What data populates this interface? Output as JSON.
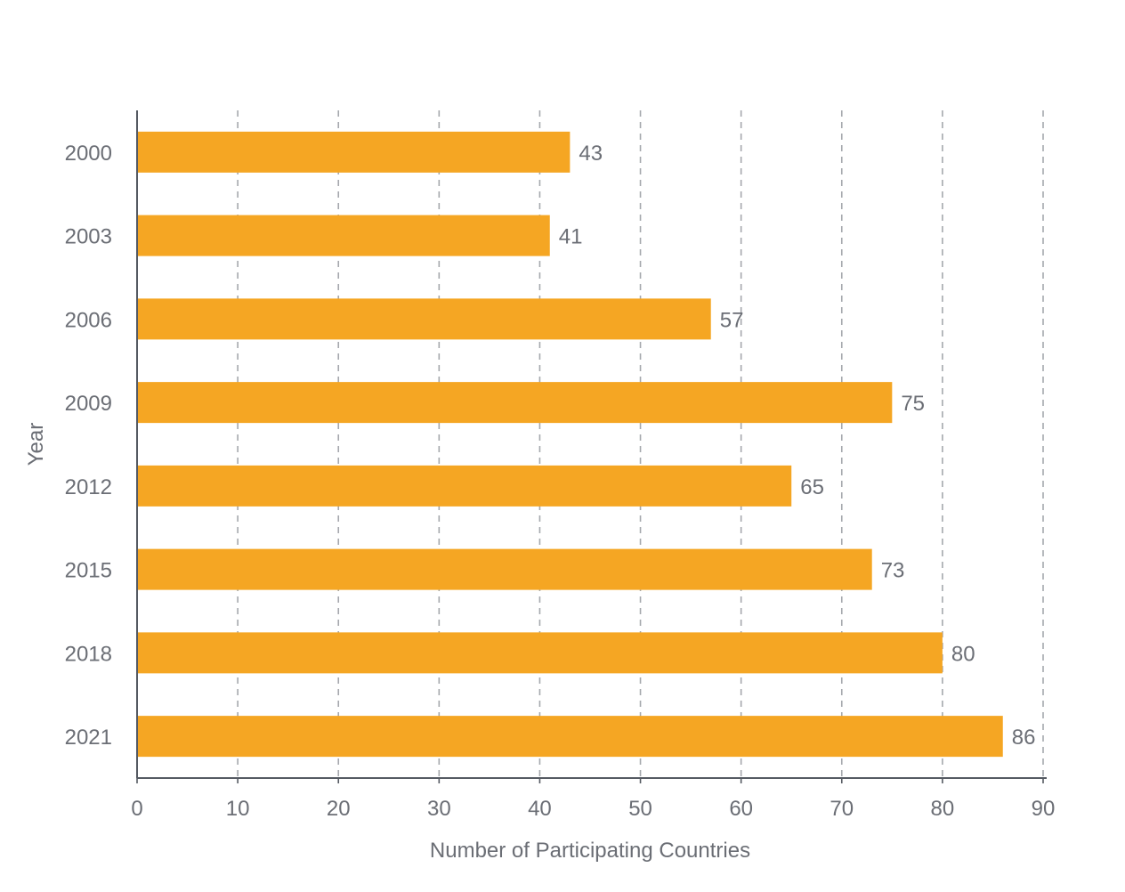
{
  "chart_data": {
    "type": "bar",
    "orientation": "horizontal",
    "title": "",
    "categories": [
      "2000",
      "2003",
      "2006",
      "2009",
      "2012",
      "2015",
      "2018",
      "2021"
    ],
    "values": [
      43,
      41,
      57,
      75,
      65,
      73,
      80,
      86
    ],
    "xlabel": "Number of Participating Countries",
    "ylabel": "Year",
    "xlim": [
      0,
      90
    ],
    "xticks": [
      "0",
      "10",
      "20",
      "30",
      "40",
      "50",
      "60",
      "70",
      "80",
      "90"
    ],
    "grid": "vertical dashed",
    "legend": "none",
    "data_labels": [
      "43",
      "41",
      "57",
      "75",
      "65",
      "73",
      "80",
      "86"
    ]
  },
  "colors": {
    "bar": "#f5a623",
    "axis": "#555a62",
    "grid": "#a5a8ad",
    "text": "#6b6e75"
  }
}
